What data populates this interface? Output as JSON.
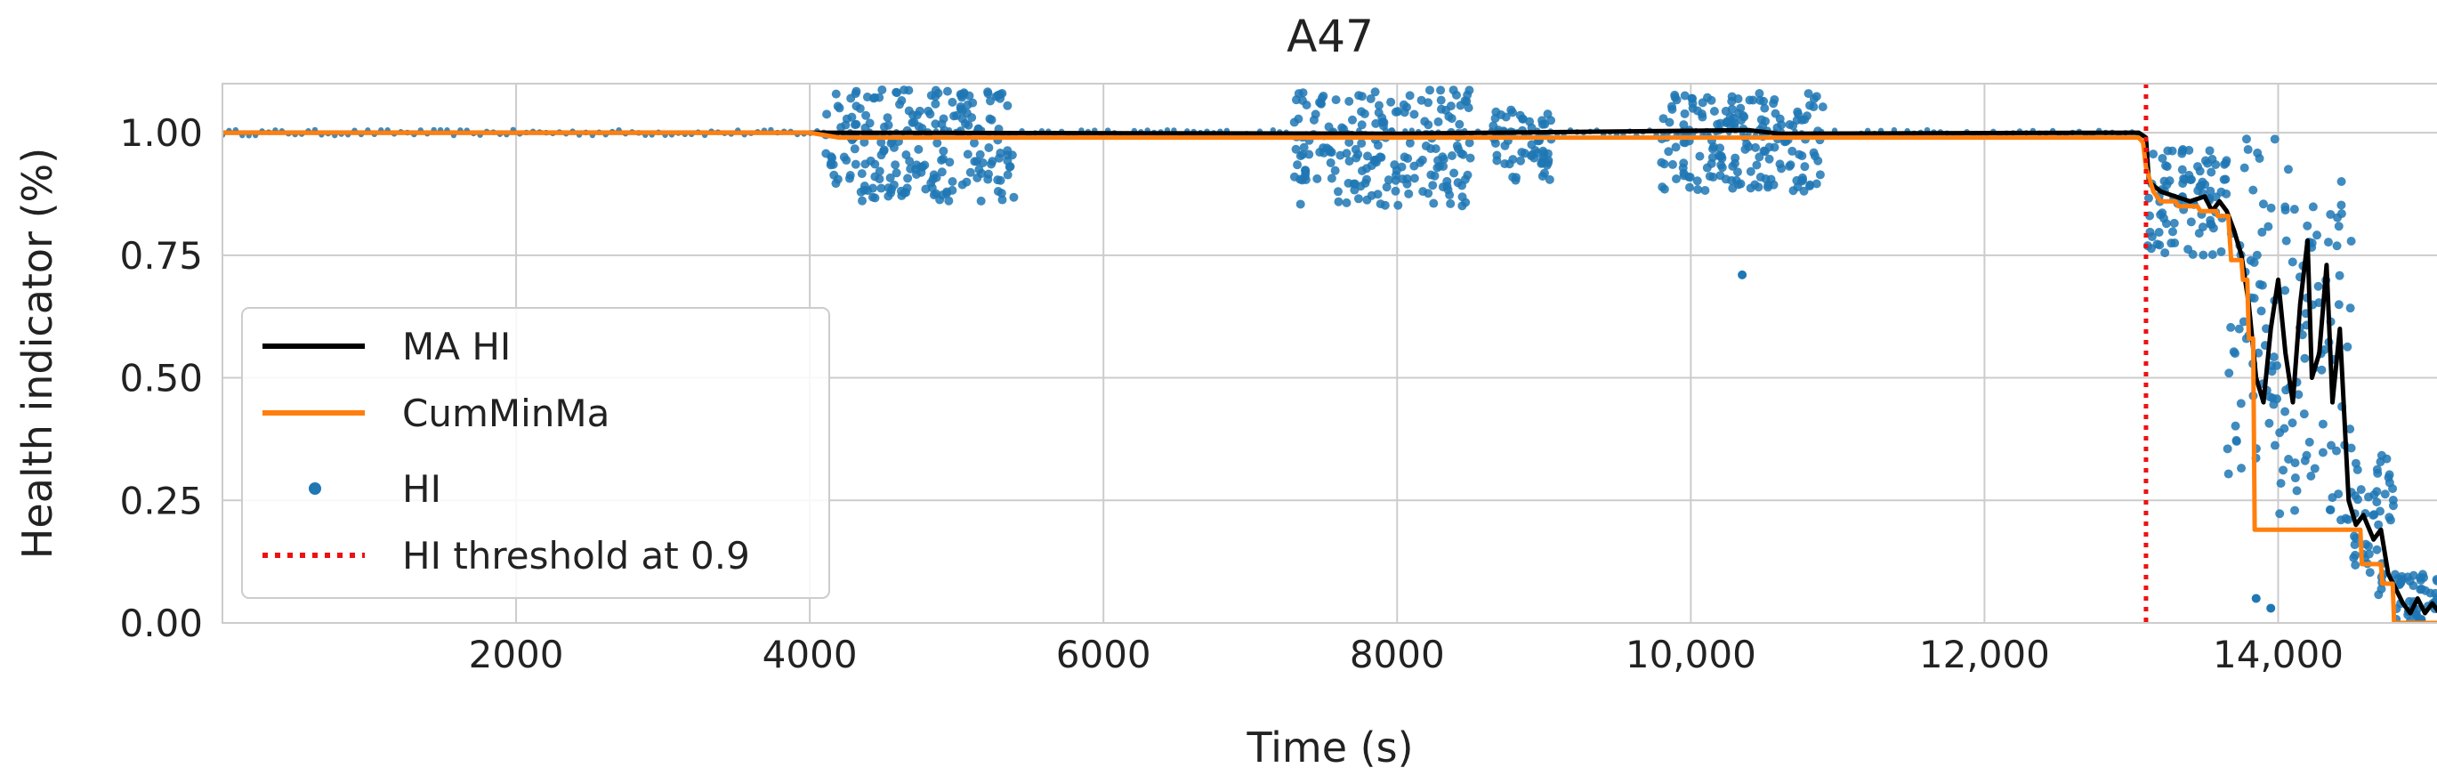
{
  "chart_data": {
    "type": "line",
    "title": "A47",
    "xlabel": "Time (s)",
    "ylabel": "Health indicator (%)",
    "xlim": [
      0,
      15100
    ],
    "ylim": [
      0.0,
      1.1
    ],
    "xticks": [
      2000,
      4000,
      6000,
      8000,
      10000,
      12000,
      14000
    ],
    "xtick_labels": [
      "2000",
      "4000",
      "6000",
      "8000",
      "10,000",
      "12,000",
      "14,000"
    ],
    "yticks": [
      0.0,
      0.25,
      0.5,
      0.75,
      1.0
    ],
    "ytick_labels": [
      "0.00",
      "0.25",
      "0.50",
      "0.75",
      "1.00"
    ],
    "grid": true,
    "legend_position": "center-left",
    "legend": [
      {
        "label": "MA HI",
        "style": "line",
        "color": "#000000"
      },
      {
        "label": "CumMinMa",
        "style": "line",
        "color": "#ff7f0e"
      },
      {
        "label": "HI",
        "style": "marker",
        "color": "#1f77b4"
      },
      {
        "label": "HI threshold at 0.9",
        "style": "dotted",
        "color": "#ee1111"
      }
    ],
    "threshold": {
      "x": 13100,
      "label": "HI threshold at 0.9"
    },
    "series": [
      {
        "name": "MA HI",
        "color": "#000000",
        "points": [
          [
            0,
            1.0
          ],
          [
            4000,
            1.0
          ],
          [
            8000,
            0.998
          ],
          [
            10400,
            1.005
          ],
          [
            10600,
            0.998
          ],
          [
            13050,
            1.0
          ],
          [
            13100,
            0.99
          ],
          [
            13120,
            0.9
          ],
          [
            13200,
            0.88
          ],
          [
            13300,
            0.87
          ],
          [
            13400,
            0.86
          ],
          [
            13500,
            0.87
          ],
          [
            13550,
            0.84
          ],
          [
            13600,
            0.86
          ],
          [
            13650,
            0.84
          ],
          [
            13700,
            0.8
          ],
          [
            13750,
            0.75
          ],
          [
            13800,
            0.65
          ],
          [
            13850,
            0.5
          ],
          [
            13900,
            0.45
          ],
          [
            13950,
            0.6
          ],
          [
            14000,
            0.7
          ],
          [
            14050,
            0.55
          ],
          [
            14100,
            0.45
          ],
          [
            14150,
            0.65
          ],
          [
            14200,
            0.78
          ],
          [
            14230,
            0.5
          ],
          [
            14280,
            0.55
          ],
          [
            14330,
            0.73
          ],
          [
            14370,
            0.45
          ],
          [
            14420,
            0.6
          ],
          [
            14480,
            0.25
          ],
          [
            14530,
            0.2
          ],
          [
            14580,
            0.22
          ],
          [
            14650,
            0.17
          ],
          [
            14700,
            0.19
          ],
          [
            14750,
            0.1
          ],
          [
            14800,
            0.07
          ],
          [
            14850,
            0.04
          ],
          [
            14900,
            0.02
          ],
          [
            14950,
            0.05
          ],
          [
            15000,
            0.02
          ],
          [
            15050,
            0.04
          ],
          [
            15100,
            0.02
          ]
        ]
      },
      {
        "name": "CumMinMa",
        "color": "#ff7f0e",
        "points": [
          [
            0,
            1.0
          ],
          [
            4000,
            1.0
          ],
          [
            4200,
            0.99
          ],
          [
            13050,
            0.99
          ],
          [
            13080,
            0.98
          ],
          [
            13100,
            0.93
          ],
          [
            13150,
            0.88
          ],
          [
            13200,
            0.86
          ],
          [
            13300,
            0.86
          ],
          [
            13320,
            0.85
          ],
          [
            13450,
            0.85
          ],
          [
            13470,
            0.84
          ],
          [
            13580,
            0.84
          ],
          [
            13590,
            0.83
          ],
          [
            13660,
            0.83
          ],
          [
            13680,
            0.74
          ],
          [
            13750,
            0.74
          ],
          [
            13760,
            0.7
          ],
          [
            13790,
            0.7
          ],
          [
            13800,
            0.58
          ],
          [
            13830,
            0.58
          ],
          [
            13840,
            0.19
          ],
          [
            14560,
            0.19
          ],
          [
            14570,
            0.12
          ],
          [
            14700,
            0.12
          ],
          [
            14710,
            0.08
          ],
          [
            14780,
            0.08
          ],
          [
            14790,
            0.0
          ],
          [
            15100,
            0.0
          ]
        ]
      },
      {
        "name": "HI",
        "color": "#1f77b4",
        "regions": [
          {
            "x": [
              4100,
              5400
            ],
            "y": [
              0.86,
              1.09
            ]
          },
          {
            "x": [
              7300,
              8500
            ],
            "y": [
              0.85,
              1.09
            ]
          },
          {
            "x": [
              8650,
              9050
            ],
            "y": [
              0.9,
              1.05
            ]
          },
          {
            "x": [
              9800,
              10900
            ],
            "y": [
              0.88,
              1.08
            ]
          },
          {
            "x": [
              13100,
              13650
            ],
            "y": [
              0.75,
              0.97
            ]
          },
          {
            "x": [
              13650,
              14000
            ],
            "y": [
              0.3,
              1.0
            ]
          },
          {
            "x": [
              14000,
              14500
            ],
            "y": [
              0.2,
              0.95
            ]
          },
          {
            "x": [
              14500,
              14800
            ],
            "y": [
              0.05,
              0.35
            ]
          },
          {
            "x": [
              14800,
              15100
            ],
            "y": [
              0.0,
              0.1
            ]
          }
        ],
        "outliers": [
          [
            10350,
            0.71
          ],
          [
            13850,
            0.05
          ],
          [
            13950,
            0.03
          ]
        ]
      }
    ]
  }
}
